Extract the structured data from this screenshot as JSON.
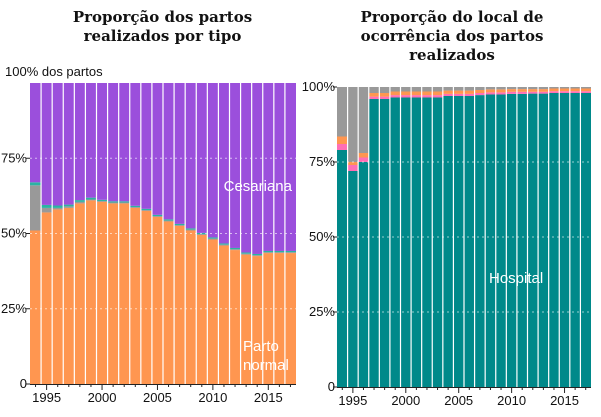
{
  "chart_data": [
    {
      "type": "bar",
      "stacked": true,
      "title": "Proporção dos partos realizados por tipo",
      "ylabel_top": "100% dos partos",
      "x_ticks": [
        "1995",
        "2000",
        "2005",
        "2010",
        "2015"
      ],
      "y_ticks": [
        "0",
        "25%",
        "50%",
        "75%"
      ],
      "ylim": [
        0,
        100
      ],
      "x": [
        1994,
        1995,
        1996,
        1997,
        1998,
        1999,
        2000,
        2001,
        2002,
        2003,
        2004,
        2005,
        2006,
        2007,
        2008,
        2009,
        2010,
        2011,
        2012,
        2013,
        2014,
        2015,
        2016,
        2017
      ],
      "annotations": [
        "Cesariana",
        "Parto normal"
      ],
      "series": [
        {
          "name": "Parto normal",
          "color": "#ff9650",
          "values": [
            51,
            57,
            58,
            58.5,
            60,
            61,
            60.5,
            60,
            60,
            58.5,
            57.5,
            55.5,
            54,
            52.5,
            51,
            49.5,
            48,
            46,
            44.5,
            43,
            42.5,
            43.5,
            43.5,
            43.5
          ]
        },
        {
          "color": "#999999",
          "values": [
            15,
            1.5,
            0.5,
            0.5,
            0.5,
            0.3,
            0.3,
            0.3,
            0.3,
            0.3,
            0.3,
            0.3,
            0.3,
            0.3,
            0.3,
            0.3,
            0.3,
            0.3,
            0.3,
            0.3,
            0.3,
            0.3,
            0.3,
            0.3
          ]
        },
        {
          "color": "#2bb3a3",
          "values": [
            1,
            1,
            0.8,
            0.6,
            0.6,
            0.6,
            0.4,
            0.4,
            0.4,
            0.4,
            0.4,
            0.4,
            0.4,
            0.4,
            0.4,
            0.4,
            0.4,
            0.4,
            0.4,
            0.4,
            0.4,
            0.4,
            0.4,
            0.4
          ]
        },
        {
          "name": "Cesariana",
          "color": "#9b4fdc",
          "values": [
            33,
            40.5,
            40.7,
            40.4,
            38.9,
            38.1,
            38.8,
            39.3,
            39.3,
            40.8,
            41.8,
            43.8,
            45.3,
            46.8,
            48.3,
            49.8,
            51.3,
            53.3,
            54.8,
            56.3,
            56.8,
            55.8,
            55.8,
            55.8
          ]
        }
      ]
    },
    {
      "type": "bar",
      "stacked": true,
      "title": "Proporção do local de ocorrência dos partos realizados",
      "x_ticks": [
        "1995",
        "2000",
        "2005",
        "2010",
        "2015"
      ],
      "y_ticks": [
        "0",
        "25%",
        "50%",
        "75%",
        "100%"
      ],
      "ylim": [
        0,
        100
      ],
      "x": [
        1994,
        1995,
        1996,
        1997,
        1998,
        1999,
        2000,
        2001,
        2002,
        2003,
        2004,
        2005,
        2006,
        2007,
        2008,
        2009,
        2010,
        2011,
        2012,
        2013,
        2014,
        2015,
        2016,
        2017
      ],
      "annotations": [
        "Hospital"
      ],
      "series": [
        {
          "name": "Hospital",
          "color": "#00898a",
          "values": [
            79,
            72,
            75,
            96,
            96,
            96.5,
            96.5,
            96.5,
            96.5,
            96.5,
            97,
            97,
            97,
            97.3,
            97.5,
            97.5,
            97.7,
            97.7,
            97.8,
            97.8,
            98,
            98,
            98,
            98
          ]
        },
        {
          "color": "#ff6fb5",
          "values": [
            2,
            2,
            1.5,
            0.8,
            0.8,
            0.8,
            0.8,
            0.8,
            0.8,
            0.8,
            0.7,
            0.7,
            0.7,
            0.7,
            0.7,
            0.7,
            0.7,
            0.7,
            0.6,
            0.6,
            0.6,
            0.6,
            0.6,
            0.6
          ]
        },
        {
          "color": "#ff9650",
          "values": [
            2.5,
            1,
            1.5,
            1.2,
            1.2,
            1.2,
            1.2,
            1.2,
            1.2,
            1.2,
            1.1,
            1.1,
            1.1,
            1.0,
            1.0,
            1.0,
            0.9,
            0.9,
            0.9,
            0.9,
            0.9,
            0.9,
            0.9,
            0.9
          ]
        },
        {
          "color": "#999999",
          "values": [
            16.5,
            25,
            22,
            2,
            2,
            1.5,
            1.5,
            1.5,
            1.5,
            1.5,
            1.2,
            1.2,
            1.2,
            1.0,
            0.8,
            0.8,
            0.7,
            0.7,
            0.7,
            0.7,
            0.5,
            0.5,
            0.5,
            0.5
          ]
        }
      ]
    }
  ]
}
